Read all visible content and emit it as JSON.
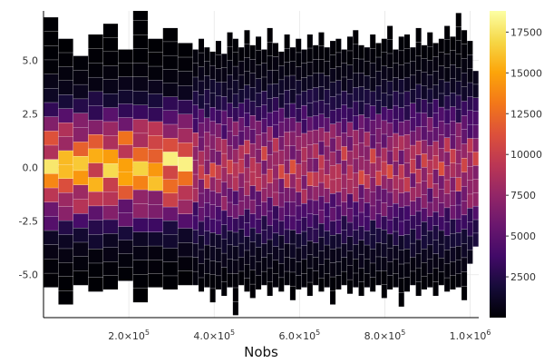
{
  "chart_data": {
    "type": "heatmap",
    "title": "",
    "xlabel": "Nobs",
    "ylabel": "",
    "colormap": "inferno",
    "xlim": [
      0,
      1020000
    ],
    "ylim": [
      -7,
      7.3
    ],
    "clim": [
      0,
      18800
    ],
    "x_ticks": [
      {
        "value": 200000,
        "mantissa": "2.0",
        "base": "×10",
        "exp": "5"
      },
      {
        "value": 400000,
        "mantissa": "4.0",
        "base": "×10",
        "exp": "5"
      },
      {
        "value": 600000,
        "mantissa": "6.0",
        "base": "×10",
        "exp": "5"
      },
      {
        "value": 800000,
        "mantissa": "8.0",
        "base": "×10",
        "exp": "5"
      },
      {
        "value": 1000000,
        "mantissa": "1.0",
        "base": "×10",
        "exp": "6"
      }
    ],
    "y_ticks": [
      {
        "value": 5.0,
        "label": "5.0"
      },
      {
        "value": 2.5,
        "label": "2.5"
      },
      {
        "value": 0.0,
        "label": "0.0"
      },
      {
        "value": -2.5,
        "label": "-2.5"
      },
      {
        "value": -5.0,
        "label": "-5.0"
      }
    ],
    "colorbar_ticks": [
      {
        "value": 2500,
        "label": "2500"
      },
      {
        "value": 5000,
        "label": "5000"
      },
      {
        "value": 7500,
        "label": "7500"
      },
      {
        "value": 10000,
        "label": "10000"
      },
      {
        "value": 12500,
        "label": "12500"
      },
      {
        "value": 15000,
        "label": "15000"
      },
      {
        "value": 17500,
        "label": "17500"
      }
    ],
    "bin_height": 0.65,
    "groups": [
      {
        "x_start": 0,
        "x_end": 350000,
        "n_cols": 10,
        "sigma": 1.55,
        "peak": 14500,
        "edges": [
          [
            -5.6,
            7.0
          ],
          [
            -6.4,
            6.0
          ],
          [
            -5.5,
            5.2
          ],
          [
            -5.8,
            6.2
          ],
          [
            -5.7,
            6.7
          ],
          [
            -5.3,
            5.5
          ],
          [
            -6.3,
            7.5
          ],
          [
            -5.6,
            6.0
          ],
          [
            -5.7,
            6.5
          ],
          [
            -5.5,
            5.8
          ]
        ]
      },
      {
        "x_start": 350000,
        "x_end": 1020000,
        "n_cols": 50,
        "sigma": 1.9,
        "peak": 8500,
        "edges": [
          [
            -5.5,
            5.5
          ],
          [
            -5.8,
            6.0
          ],
          [
            -5.6,
            5.6
          ],
          [
            -6.3,
            5.4
          ],
          [
            -5.7,
            5.9
          ],
          [
            -6.0,
            5.3
          ],
          [
            -5.6,
            6.3
          ],
          [
            -6.9,
            6.0
          ],
          [
            -5.5,
            5.6
          ],
          [
            -5.8,
            6.4
          ],
          [
            -6.1,
            5.7
          ],
          [
            -5.7,
            6.1
          ],
          [
            -5.5,
            5.5
          ],
          [
            -6.0,
            6.5
          ],
          [
            -5.6,
            5.8
          ],
          [
            -5.8,
            5.4
          ],
          [
            -5.5,
            6.2
          ],
          [
            -6.2,
            5.6
          ],
          [
            -5.7,
            6.0
          ],
          [
            -5.6,
            5.5
          ],
          [
            -6.0,
            6.2
          ],
          [
            -5.5,
            5.7
          ],
          [
            -5.8,
            6.3
          ],
          [
            -5.6,
            5.6
          ],
          [
            -6.4,
            5.9
          ],
          [
            -5.7,
            6.0
          ],
          [
            -5.5,
            5.5
          ],
          [
            -5.9,
            6.1
          ],
          [
            -5.6,
            6.4
          ],
          [
            -6.0,
            5.7
          ],
          [
            -5.6,
            5.6
          ],
          [
            -5.8,
            6.2
          ],
          [
            -5.5,
            5.8
          ],
          [
            -6.1,
            6.0
          ],
          [
            -5.7,
            6.6
          ],
          [
            -5.6,
            5.5
          ],
          [
            -6.5,
            6.1
          ],
          [
            -5.8,
            6.2
          ],
          [
            -5.5,
            5.6
          ],
          [
            -6.0,
            6.5
          ],
          [
            -5.7,
            5.7
          ],
          [
            -5.6,
            6.3
          ],
          [
            -6.0,
            5.8
          ],
          [
            -5.5,
            6.0
          ],
          [
            -5.8,
            6.6
          ],
          [
            -5.7,
            6.1
          ],
          [
            -5.6,
            7.2
          ],
          [
            -6.2,
            6.4
          ],
          [
            -4.5,
            5.9
          ],
          [
            -3.7,
            4.5
          ]
        ]
      }
    ]
  }
}
